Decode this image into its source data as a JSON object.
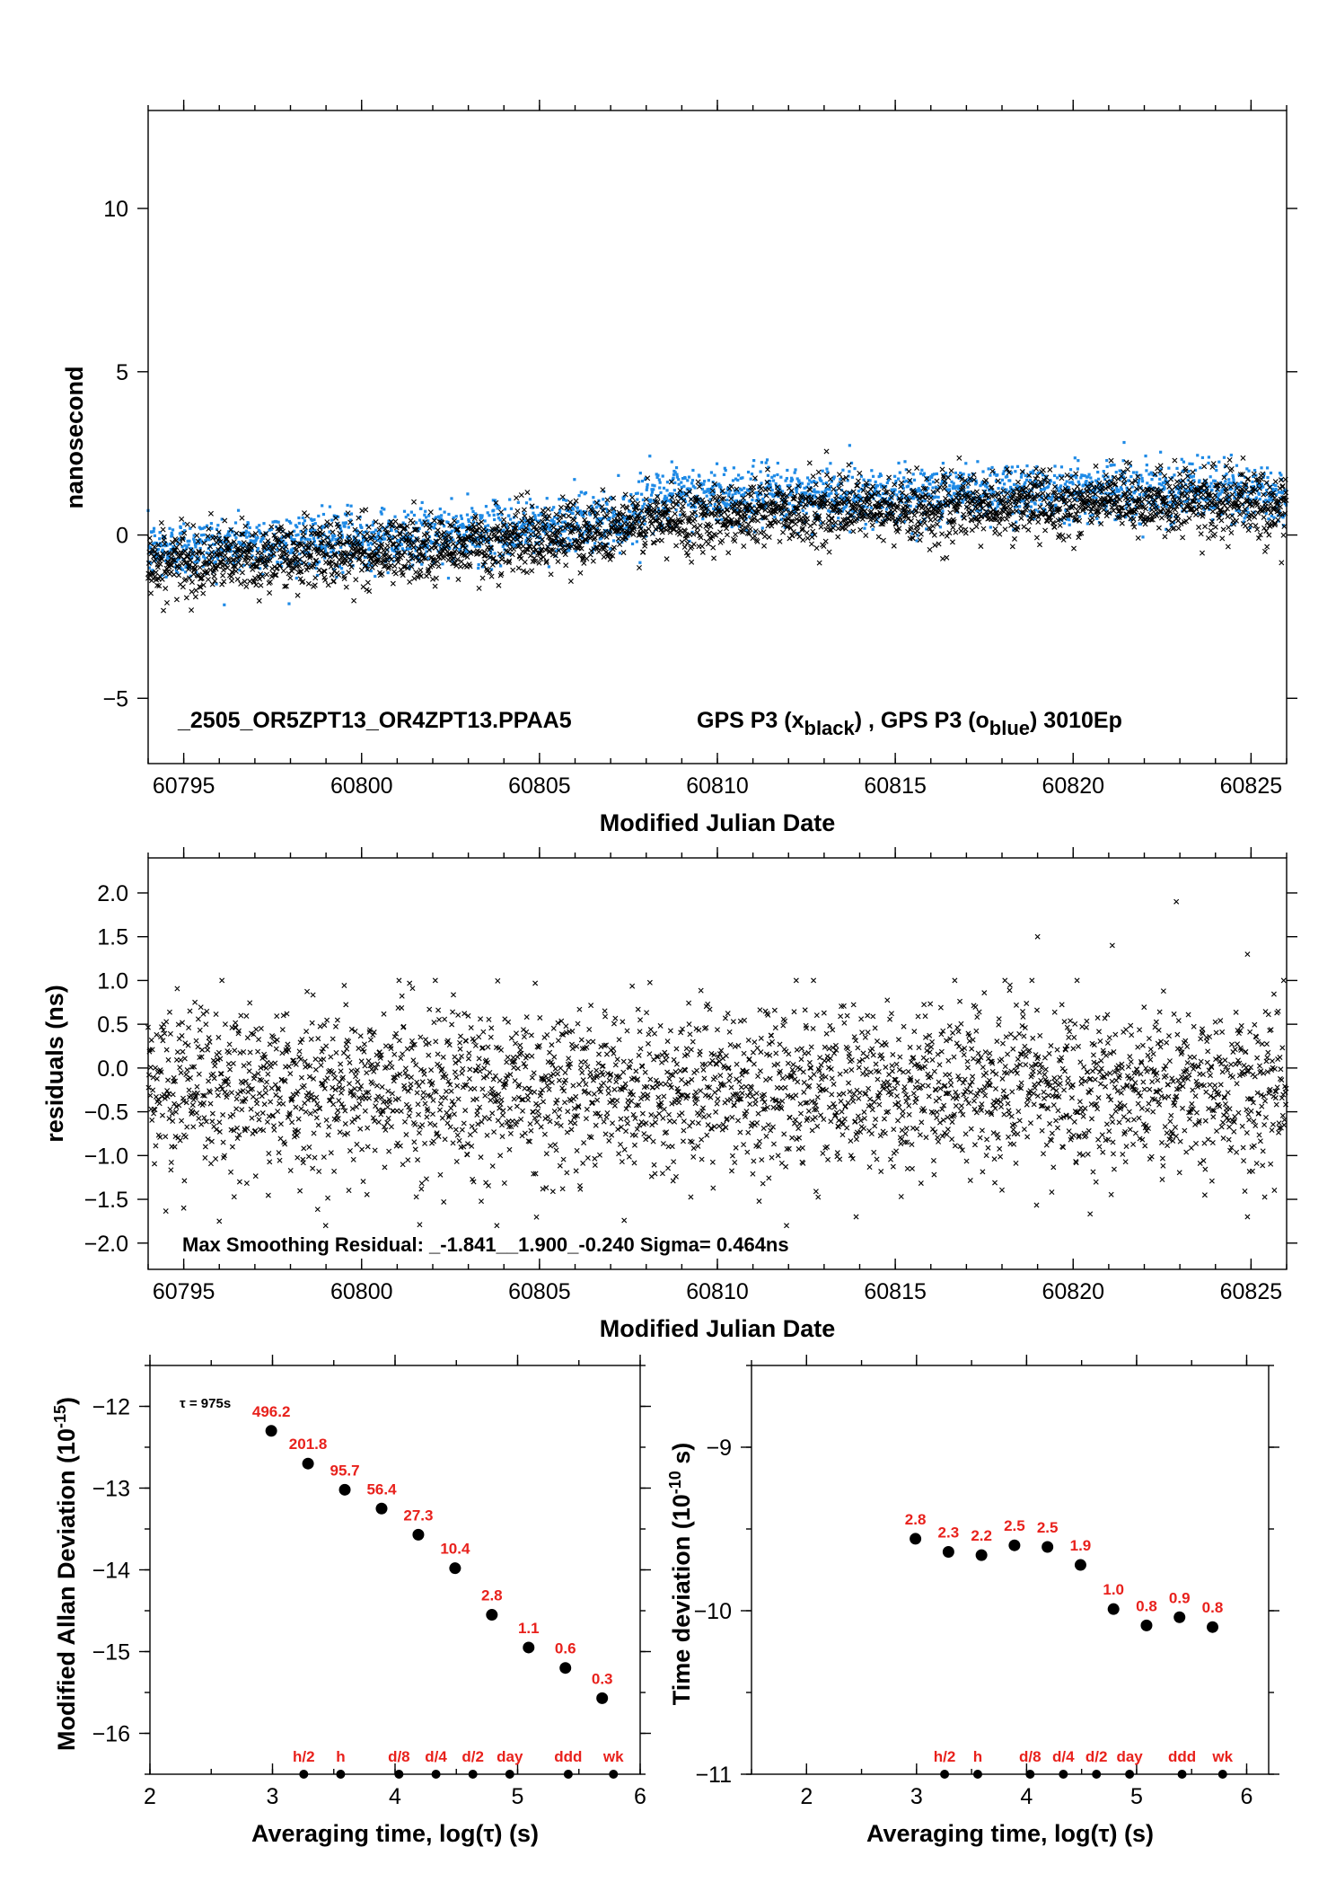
{
  "chart_data": [
    {
      "id": "phase",
      "type": "scatter",
      "xlabel": "Modified Julian Date",
      "ylabel": "nanosecond",
      "xlim": [
        60794,
        60826
      ],
      "ylim": [
        -7,
        13
      ],
      "xticks": [
        60795,
        60800,
        60805,
        60810,
        60815,
        60820,
        60825
      ],
      "yticks": [
        -5,
        0,
        5,
        10
      ],
      "annotation_title": "_2505_OR5ZPT13_OR4ZPT13.PPAA5",
      "annotation_series": "GPS P3 (x",
      "annotation_series_sub1": "black",
      "annotation_mid": ") ,  GPS P3 (o",
      "annotation_series_sub2": "blue",
      "annotation_end": ")  3010Ep",
      "series": [
        {
          "marker": "x",
          "color": "#000000",
          "points_note": "approx. 2900 samples (15-min spacing), trend",
          "trend": [
            [
              60794,
              -0.9
            ],
            [
              60797,
              -0.7
            ],
            [
              60800,
              -0.5
            ],
            [
              60803,
              -0.35
            ],
            [
              60806,
              0.05
            ],
            [
              60808,
              0.35
            ],
            [
              60810,
              0.6
            ],
            [
              60812,
              0.75
            ],
            [
              60815,
              0.75
            ],
            [
              60818,
              0.9
            ],
            [
              60821,
              1.0
            ],
            [
              60824,
              1.0
            ],
            [
              60826,
              0.85
            ]
          ],
          "scatter_sd": 0.5
        },
        {
          "marker": "o",
          "color": "#1e8ae6",
          "trend": [
            [
              60794,
              -0.5
            ],
            [
              60797,
              -0.25
            ],
            [
              60800,
              -0.15
            ],
            [
              60803,
              0.0
            ],
            [
              60806,
              0.35
            ],
            [
              60807.5,
              0.5
            ],
            [
              60808,
              1.1
            ],
            [
              60810,
              1.2
            ],
            [
              60812,
              1.2
            ],
            [
              60815,
              1.2
            ],
            [
              60818,
              1.35
            ],
            [
              60821,
              1.4
            ],
            [
              60824,
              1.35
            ],
            [
              60826,
              1.2
            ]
          ],
          "scatter_sd": 0.45
        }
      ]
    },
    {
      "id": "residuals",
      "type": "scatter",
      "xlabel": "Modified Julian Date",
      "ylabel": "residuals (ns)",
      "xlim": [
        60794,
        60826
      ],
      "ylim": [
        -2.3,
        2.4
      ],
      "xticks": [
        60795,
        60800,
        60805,
        60810,
        60815,
        60820,
        60825
      ],
      "yticks": [
        -2.0,
        -1.5,
        -1.0,
        -0.5,
        0.0,
        0.5,
        1.0,
        1.5,
        2.0
      ],
      "ytick_labels": [
        "−2.0",
        "−1.5",
        "−1.0",
        "−0.5",
        "0.0",
        "0.5",
        "1.0",
        "1.5",
        "2.0"
      ],
      "annotation": "Max Smoothing Residual: _-1.841__1.900_-0.240  Sigma= 0.464ns",
      "series": [
        {
          "marker": "x",
          "color": "#000000",
          "mean": -0.24,
          "sigma": 0.464,
          "extremes": [
            [
              60822.9,
              1.9
            ],
            [
              60819.0,
              1.5
            ],
            [
              60821.1,
              1.4
            ],
            [
              60824.9,
              1.3
            ],
            [
              60795.0,
              -1.6
            ],
            [
              60813.9,
              -1.7
            ],
            [
              60824.9,
              -1.7
            ],
            [
              60796.0,
              -1.75
            ]
          ]
        }
      ]
    },
    {
      "id": "mdev",
      "type": "scatter",
      "xlabel": "Averaging time, log(τ) (s)",
      "ylabel": "Modified Allan Deviation (10",
      "ylabel_sup": "-15",
      "ylabel_end": ")",
      "xlim": [
        2,
        6
      ],
      "ylim": [
        -16.5,
        -11.5
      ],
      "xticks": [
        2,
        3,
        4,
        5,
        6
      ],
      "yticks": [
        -16,
        -15,
        -14,
        -13,
        -12
      ],
      "ytick_labels": [
        "−16",
        "−15",
        "−14",
        "−13",
        "−12"
      ],
      "tau0_label": "τ = 975s",
      "x": [
        2.99,
        3.29,
        3.59,
        3.89,
        4.19,
        4.49,
        4.79,
        5.09,
        5.39,
        5.69
      ],
      "y": [
        -12.3,
        -12.7,
        -13.02,
        -13.25,
        -13.57,
        -13.98,
        -14.55,
        -14.95,
        -15.2,
        -15.57
      ],
      "value_labels": [
        "496.2",
        "201.8",
        "95.7",
        "56.4",
        "27.3",
        "10.4",
        "2.8",
        "1.1",
        "0.6",
        "0.3"
      ],
      "markers": [
        {
          "label": "h/2",
          "x": 3.255
        },
        {
          "label": "h",
          "x": 3.556
        },
        {
          "label": "d/8",
          "x": 4.032
        },
        {
          "label": "d/4",
          "x": 4.334
        },
        {
          "label": "d/2",
          "x": 4.635
        },
        {
          "label": "day",
          "x": 4.936
        },
        {
          "label": "ddd",
          "x": 5.413
        },
        {
          "label": "wk",
          "x": 5.782
        }
      ]
    },
    {
      "id": "tdev",
      "type": "scatter",
      "xlabel": "Averaging time, log(τ) (s)",
      "ylabel": "Time deviation (10",
      "ylabel_sup": "-10",
      "ylabel_end": " s)",
      "xlim": [
        1.5,
        6.2
      ],
      "ylim": [
        -11,
        -8.5
      ],
      "xticks": [
        2,
        3,
        4,
        5,
        6
      ],
      "yticks": [
        -11,
        -10,
        -9
      ],
      "ytick_labels": [
        "−11",
        "−10",
        "−9"
      ],
      "x": [
        2.99,
        3.29,
        3.59,
        3.89,
        4.19,
        4.49,
        4.79,
        5.09,
        5.39,
        5.69
      ],
      "y": [
        -9.56,
        -9.64,
        -9.66,
        -9.6,
        -9.61,
        -9.72,
        -9.99,
        -10.09,
        -10.04,
        -10.1
      ],
      "value_labels": [
        "2.8",
        "2.3",
        "2.2",
        "2.5",
        "2.5",
        "1.9",
        "1.0",
        "0.8",
        "0.9",
        "0.8"
      ],
      "markers": [
        {
          "label": "h/2",
          "x": 3.255
        },
        {
          "label": "h",
          "x": 3.556
        },
        {
          "label": "d/8",
          "x": 4.032
        },
        {
          "label": "d/4",
          "x": 4.334
        },
        {
          "label": "d/2",
          "x": 4.635
        },
        {
          "label": "day",
          "x": 4.936
        },
        {
          "label": "ddd",
          "x": 5.413
        },
        {
          "label": "wk",
          "x": 5.782
        }
      ]
    }
  ]
}
